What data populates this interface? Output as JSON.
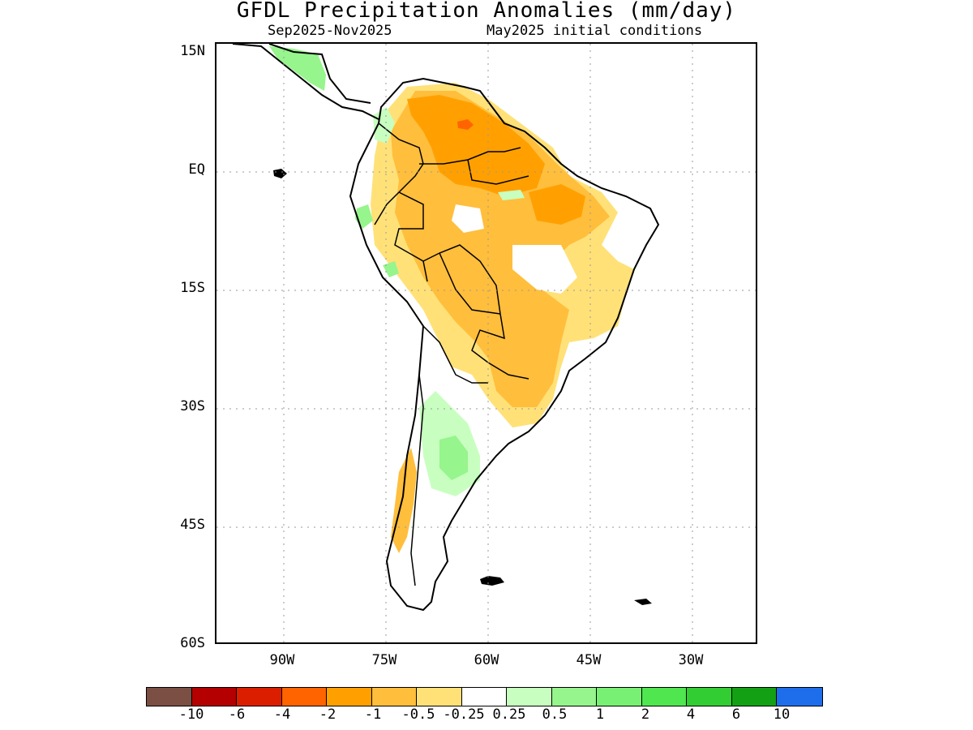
{
  "title": "GFDL Precipitation Anomalies (mm/day)",
  "subtitle_left": "Sep2025-Nov2025",
  "subtitle_right": "May2025 initial conditions",
  "lat_labels": [
    "15N",
    "EQ",
    "15S",
    "30S",
    "45S",
    "60S"
  ],
  "lon_labels": [
    "90W",
    "75W",
    "60W",
    "45W",
    "30W"
  ],
  "colorbar": {
    "colors": [
      "#7b4f44",
      "#b40000",
      "#dc1e00",
      "#ff6400",
      "#ffa000",
      "#ffbe3c",
      "#ffe178",
      "#ffffff",
      "#c8ffc0",
      "#96f58c",
      "#78f073",
      "#50e650",
      "#32cd32",
      "#14a014",
      "#1e6eeb"
    ],
    "labels": [
      "-10",
      "-6",
      "-4",
      "-2",
      "-1",
      "-0.5",
      "-0.25",
      "0.25",
      "0.5",
      "1",
      "2",
      "4",
      "6",
      "10"
    ]
  },
  "colors": {
    "dry_light": "#ffe178",
    "dry_mid": "#ffbe3c",
    "dry_strong": "#ffa000",
    "dry_stronger": "#ff6400",
    "wet_light": "#c8ffc0",
    "wet_mid": "#96f58c",
    "wet_strong": "#78f073"
  }
}
